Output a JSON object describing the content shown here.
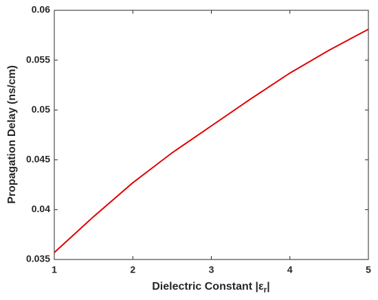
{
  "chart_data": {
    "type": "line",
    "xlabel": [
      "Dielectric Constant |ε",
      "r",
      "|"
    ],
    "ylabel": "Propagation Delay (ns/cm)",
    "x": [
      1,
      1.5,
      2,
      2.5,
      3,
      3.5,
      4,
      4.5,
      5
    ],
    "series": [
      {
        "color": "#e00000",
        "values": [
          0.0357,
          0.0393,
          0.0427,
          0.0457,
          0.0484,
          0.0511,
          0.0537,
          0.056,
          0.0581
        ]
      }
    ],
    "xlim": [
      1,
      5
    ],
    "xticks": [
      1,
      2,
      3,
      4,
      5
    ],
    "ylim": [
      0.035,
      0.06
    ],
    "yticks": [
      0.035,
      0.04,
      0.045,
      0.05,
      0.055,
      0.06
    ],
    "grid": false
  }
}
